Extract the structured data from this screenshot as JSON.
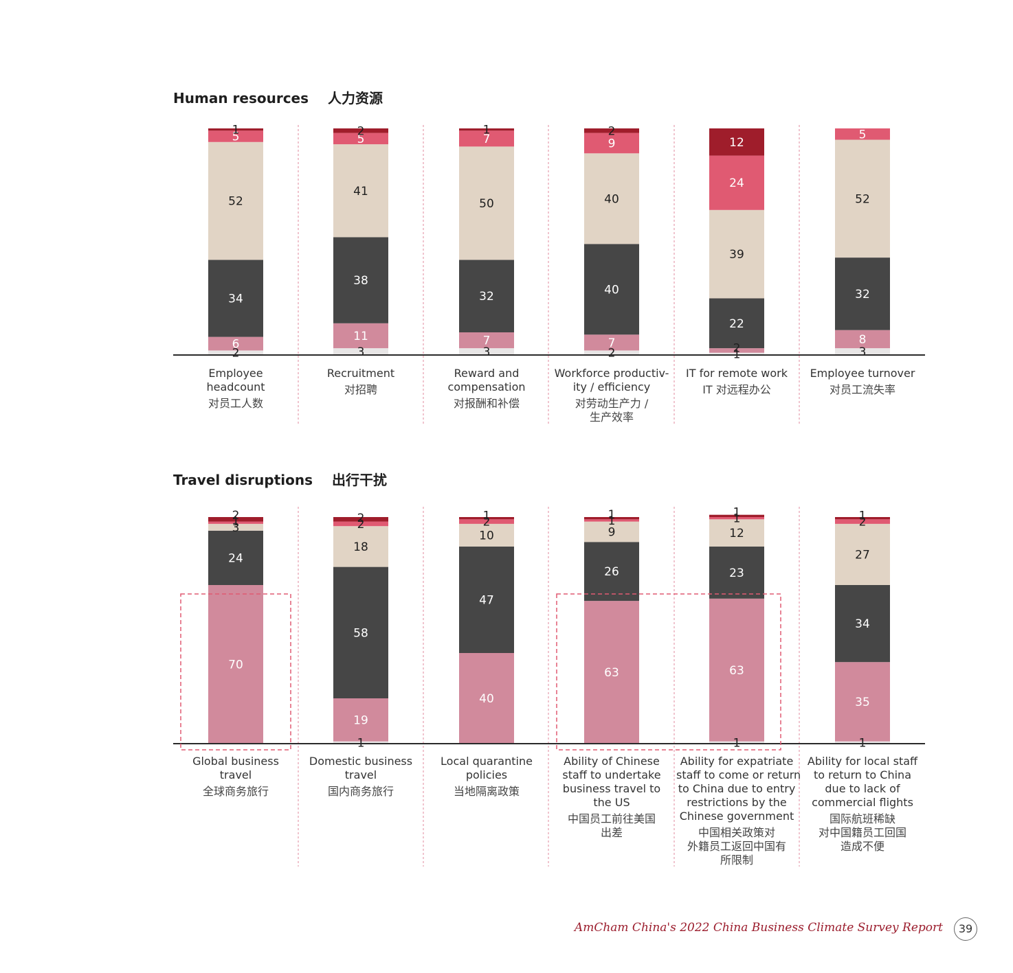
{
  "sections": [
    {
      "title": "Human resources",
      "title_zh": "人力资源"
    },
    {
      "title": "Travel disruptions",
      "title_zh": "出行干扰"
    }
  ],
  "colors": {
    "segment_1": "#e8e6e6",
    "segment_2": "#d18a9c",
    "segment_3": "#464646",
    "segment_4": "#e1d4c5",
    "segment_5": "#e05a72",
    "segment_6": "#9f1d2b",
    "highlight": "#e05a72",
    "divider": "#e08a9c"
  },
  "chart_data": [
    {
      "type": "bar",
      "stacked": true,
      "title": "Human resources",
      "categories": [
        {
          "en": [
            "Employee",
            "headcount"
          ],
          "zh": [
            "对员工人数"
          ]
        },
        {
          "en": [
            "Recruitment"
          ],
          "zh": [
            "对招聘"
          ]
        },
        {
          "en": [
            "Reward and",
            "compensation"
          ],
          "zh": [
            "对报酬和补偿"
          ]
        },
        {
          "en": [
            "Workforce productiv-",
            "ity / efficiency"
          ],
          "zh": [
            "对劳动生产力 /",
            "生产效率"
          ]
        },
        {
          "en": [
            "IT for remote work"
          ],
          "zh": [
            "IT 对远程办公"
          ]
        },
        {
          "en": [
            "Employee turnover"
          ],
          "zh": [
            "对员工流失率"
          ]
        }
      ],
      "series": [
        {
          "values": [
            2,
            3,
            3,
            2,
            1,
            3
          ]
        },
        {
          "values": [
            6,
            11,
            7,
            7,
            2,
            8
          ]
        },
        {
          "values": [
            34,
            38,
            32,
            40,
            22,
            32
          ]
        },
        {
          "values": [
            52,
            41,
            50,
            40,
            39,
            52
          ]
        },
        {
          "values": [
            5,
            5,
            7,
            9,
            24,
            5
          ]
        },
        {
          "values": [
            1,
            2,
            1,
            2,
            12,
            0
          ]
        }
      ]
    },
    {
      "type": "bar",
      "stacked": true,
      "title": "Travel disruptions",
      "categories": [
        {
          "en": [
            "Global business",
            "travel"
          ],
          "zh": [
            "全球商务旅行"
          ]
        },
        {
          "en": [
            "Domestic business",
            "travel"
          ],
          "zh": [
            "国内商务旅行"
          ]
        },
        {
          "en": [
            "Local quarantine",
            "policies"
          ],
          "zh": [
            "当地隔离政策"
          ]
        },
        {
          "en": [
            "Ability of Chinese",
            "staff to undertake",
            "business travel to",
            "the US"
          ],
          "zh": [
            "中国员工前往美国",
            "出差"
          ]
        },
        {
          "en": [
            "Ability for expatriate",
            "staff to come or return",
            "to China due to entry",
            "restrictions by the",
            "Chinese government"
          ],
          "zh": [
            "中国相关政策对",
            "外籍员工返回中国有",
            "所限制"
          ]
        },
        {
          "en": [
            "Ability for local staff",
            "to return to China",
            "due to lack of",
            "commercial flights"
          ],
          "zh": [
            "国际航班稀缺",
            "对中国籍员工回国",
            "造成不便"
          ]
        }
      ],
      "series": [
        {
          "values": [
            0,
            1,
            0,
            0,
            1,
            1
          ]
        },
        {
          "values": [
            70,
            19,
            40,
            63,
            63,
            35
          ]
        },
        {
          "values": [
            24,
            58,
            47,
            26,
            23,
            34
          ]
        },
        {
          "values": [
            3,
            18,
            10,
            9,
            12,
            27
          ]
        },
        {
          "values": [
            1,
            2,
            2,
            1,
            1,
            2
          ]
        },
        {
          "values": [
            2,
            2,
            1,
            1,
            1,
            1
          ]
        }
      ],
      "highlighted_categories": [
        0,
        3,
        4
      ]
    }
  ],
  "footer": {
    "text": "AmCham China's 2022 China Business Climate Survey Report",
    "page": "39"
  }
}
